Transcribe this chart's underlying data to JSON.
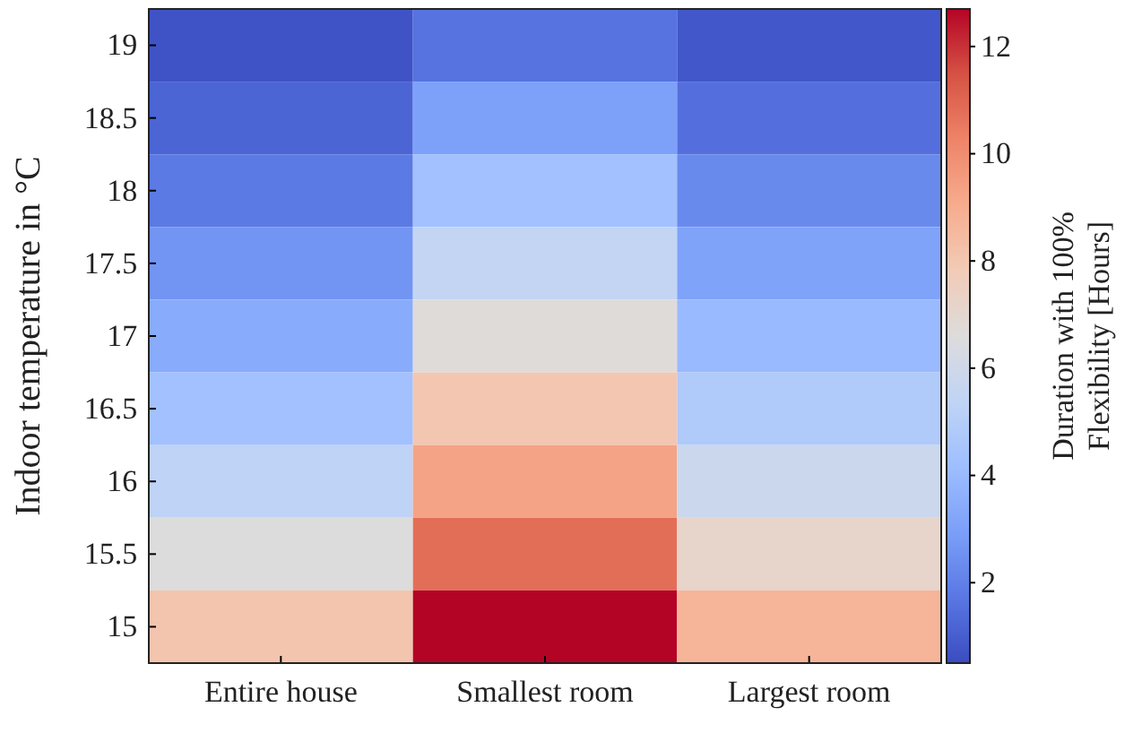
{
  "chart_data": {
    "type": "heatmap",
    "ylabel": "Indoor temperature in °C",
    "clabel": "Duration with 100% Flexibility [Hours]",
    "categories": [
      "Entire house",
      "Smallest room",
      "Largest room"
    ],
    "y_categories": [
      "19",
      "18.5",
      "18",
      "17.5",
      "17",
      "16.5",
      "16",
      "15.5",
      "15"
    ],
    "cells": [
      [
        0.7,
        1.6,
        0.8
      ],
      [
        1.2,
        3.0,
        1.5
      ],
      [
        1.8,
        4.3,
        2.3
      ],
      [
        2.6,
        5.5,
        3.1
      ],
      [
        3.4,
        6.7,
        4.0
      ],
      [
        4.3,
        8.0,
        4.8
      ],
      [
        5.3,
        9.3,
        5.8
      ],
      [
        6.6,
        10.8,
        7.2
      ],
      [
        8.1,
        12.7,
        8.7
      ]
    ],
    "clim": [
      0.5,
      12.7
    ],
    "cticks": [
      2,
      4,
      6,
      8,
      10,
      12
    ]
  }
}
